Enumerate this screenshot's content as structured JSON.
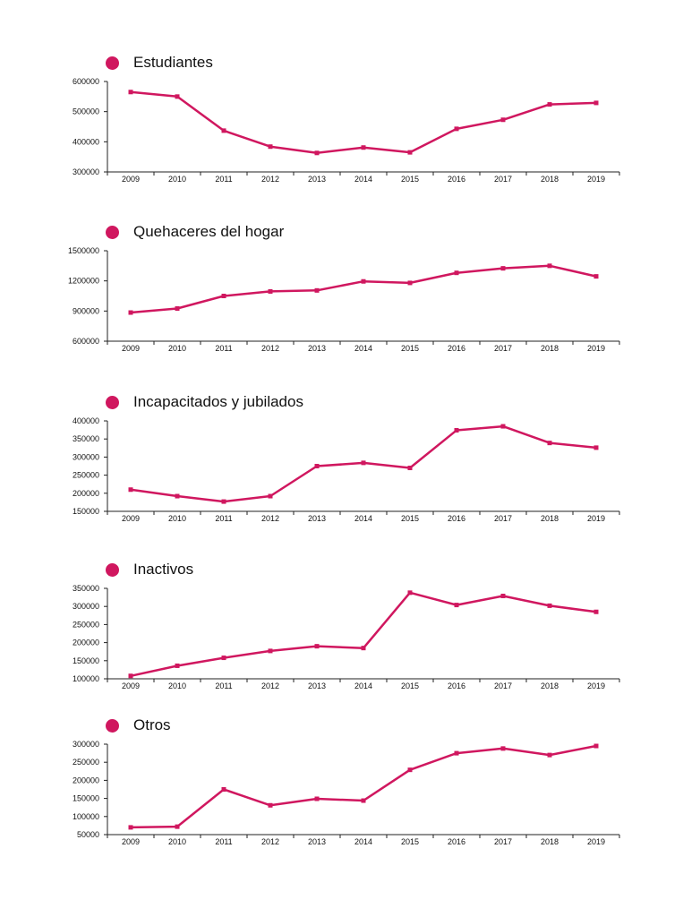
{
  "colors": {
    "series": "#d0175f",
    "axis": "#222222",
    "text": "#111111"
  },
  "chart_data": [
    {
      "type": "line",
      "title": "Estudiantes",
      "x": [
        "2009",
        "2010",
        "2011",
        "2012",
        "2013",
        "2014",
        "2015",
        "2016",
        "2017",
        "2018",
        "2019"
      ],
      "values": [
        565000,
        550000,
        437000,
        384000,
        363000,
        381000,
        365000,
        443000,
        473000,
        524000,
        529000
      ],
      "ylim": [
        300000,
        600000
      ],
      "yticks": [
        300000,
        400000,
        500000,
        600000
      ],
      "grid": false,
      "marker": "square"
    },
    {
      "type": "line",
      "title": "Quehaceres del hogar",
      "x": [
        "2009",
        "2010",
        "2011",
        "2012",
        "2013",
        "2014",
        "2015",
        "2016",
        "2017",
        "2018",
        "2019"
      ],
      "values": [
        885000,
        925000,
        1050000,
        1095000,
        1105000,
        1195000,
        1180000,
        1280000,
        1325000,
        1350000,
        1245000
      ],
      "ylim": [
        600000,
        1500000
      ],
      "yticks": [
        600000,
        900000,
        1200000,
        1500000
      ],
      "grid": false,
      "marker": "square"
    },
    {
      "type": "line",
      "title": "Incapacitados y jubilados",
      "x": [
        "2009",
        "2010",
        "2011",
        "2012",
        "2013",
        "2014",
        "2015",
        "2016",
        "2017",
        "2018",
        "2019"
      ],
      "values": [
        210000,
        192000,
        177000,
        192000,
        275000,
        284000,
        270000,
        374000,
        385000,
        339000,
        326000
      ],
      "ylim": [
        150000,
        400000
      ],
      "yticks": [
        150000,
        200000,
        250000,
        300000,
        350000,
        400000
      ],
      "grid": false,
      "marker": "square"
    },
    {
      "type": "line",
      "title": "Inactivos",
      "x": [
        "2009",
        "2010",
        "2011",
        "2012",
        "2013",
        "2014",
        "2015",
        "2016",
        "2017",
        "2018",
        "2019"
      ],
      "values": [
        108000,
        136000,
        158000,
        177000,
        190000,
        185000,
        338000,
        304000,
        329000,
        302000,
        285000
      ],
      "ylim": [
        100000,
        350000
      ],
      "yticks": [
        100000,
        150000,
        200000,
        250000,
        300000,
        350000
      ],
      "grid": false,
      "marker": "square"
    },
    {
      "type": "line",
      "title": "Otros",
      "x": [
        "2009",
        "2010",
        "2011",
        "2012",
        "2013",
        "2014",
        "2015",
        "2016",
        "2017",
        "2018",
        "2019"
      ],
      "values": [
        70000,
        72000,
        175000,
        131000,
        149000,
        144000,
        229000,
        275000,
        288000,
        270000,
        295000
      ],
      "ylim": [
        50000,
        300000
      ],
      "yticks": [
        50000,
        100000,
        150000,
        200000,
        250000,
        300000
      ],
      "grid": false,
      "marker": "square"
    }
  ]
}
